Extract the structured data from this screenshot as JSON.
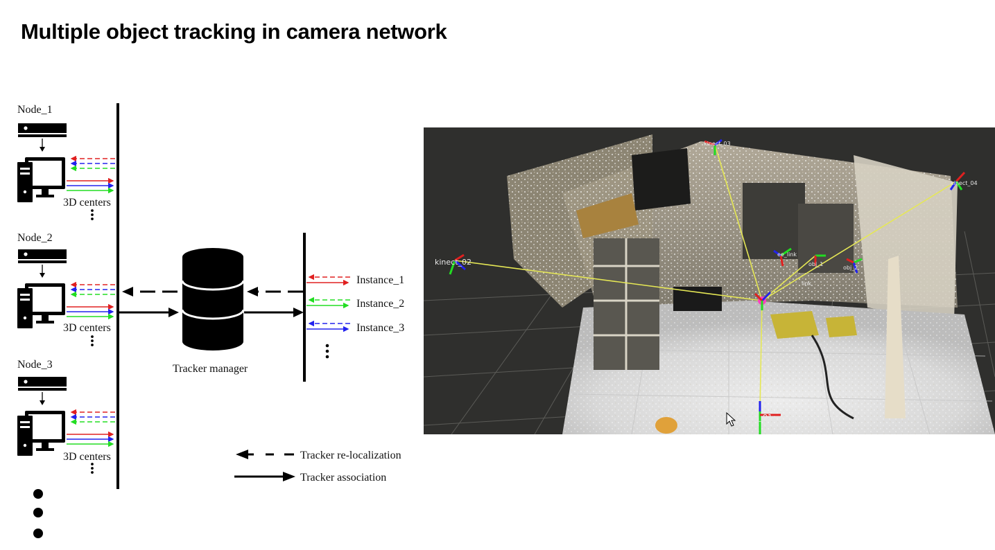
{
  "title": "Multiple object tracking in camera network",
  "nodes": [
    {
      "label": "Node_1",
      "centers_label": "3D centers"
    },
    {
      "label": "Node_2",
      "centers_label": "3D centers"
    },
    {
      "label": "Node_3",
      "centers_label": "3D centers"
    }
  ],
  "manager_label": "Tracker manager",
  "instances": [
    {
      "label": "Instance_1",
      "color": "#e02020"
    },
    {
      "label": "Instance_2",
      "color": "#22dd22"
    },
    {
      "label": "Instance_3",
      "color": "#2222ee"
    }
  ],
  "legend": [
    {
      "label": "Tracker re-localization",
      "style": "dashed"
    },
    {
      "label": "Tracker association",
      "style": "solid"
    }
  ],
  "viz": {
    "frames": [
      "kinect_01",
      "kinect_02",
      "kinect_03",
      "kinect_04",
      "ee_link",
      "obj_1",
      "obj_2",
      "link"
    ]
  }
}
